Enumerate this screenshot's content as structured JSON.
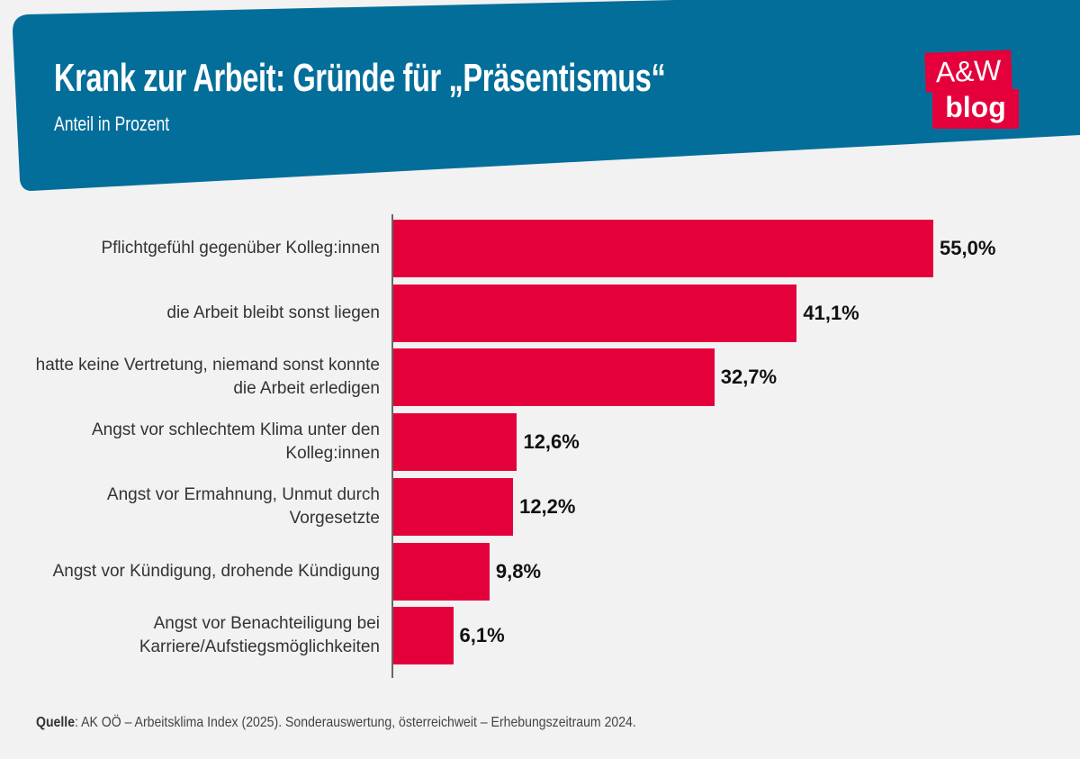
{
  "header": {
    "title": "Krank zur Arbeit: Gründe für „Präsentismus“",
    "subtitle": "Anteil in Prozent",
    "header_color": "#046e9a"
  },
  "logo": {
    "line1": "A&W",
    "line2": "blog",
    "color": "#e4003b"
  },
  "chart_data": {
    "type": "bar",
    "orientation": "horizontal",
    "title": "Krank zur Arbeit: Gründe für „Präsentismus“",
    "subtitle": "Anteil in Prozent",
    "categories": [
      "Pflichtgefühl gegenüber Kolleg:innen",
      "die Arbeit bleibt sonst liegen",
      "hatte keine Vertretung, niemand sonst konnte die Arbeit erledigen",
      "Angst vor schlechtem Klima unter den Kolleg:innen",
      "Angst vor Ermahnung, Unmut durch Vorgesetzte",
      "Angst vor Kündigung, drohende Kündigung",
      "Angst vor Benachteiligung bei Karriere/Aufstiegsmöglichkeiten"
    ],
    "values": [
      55.0,
      41.1,
      32.7,
      12.6,
      12.2,
      9.8,
      6.1
    ],
    "value_labels": [
      "55,0%",
      "41,1%",
      "32,7%",
      "12,6%",
      "12,2%",
      "9,8%",
      "6,1%"
    ],
    "bar_color": "#e4003b",
    "grid": false
  },
  "footer": {
    "source_label": "Quelle",
    "source_text": ": AK OÖ – Arbeitsklima Index (2025). Sonderauswertung, österreichweit – Erhebungszeitraum 2024."
  }
}
